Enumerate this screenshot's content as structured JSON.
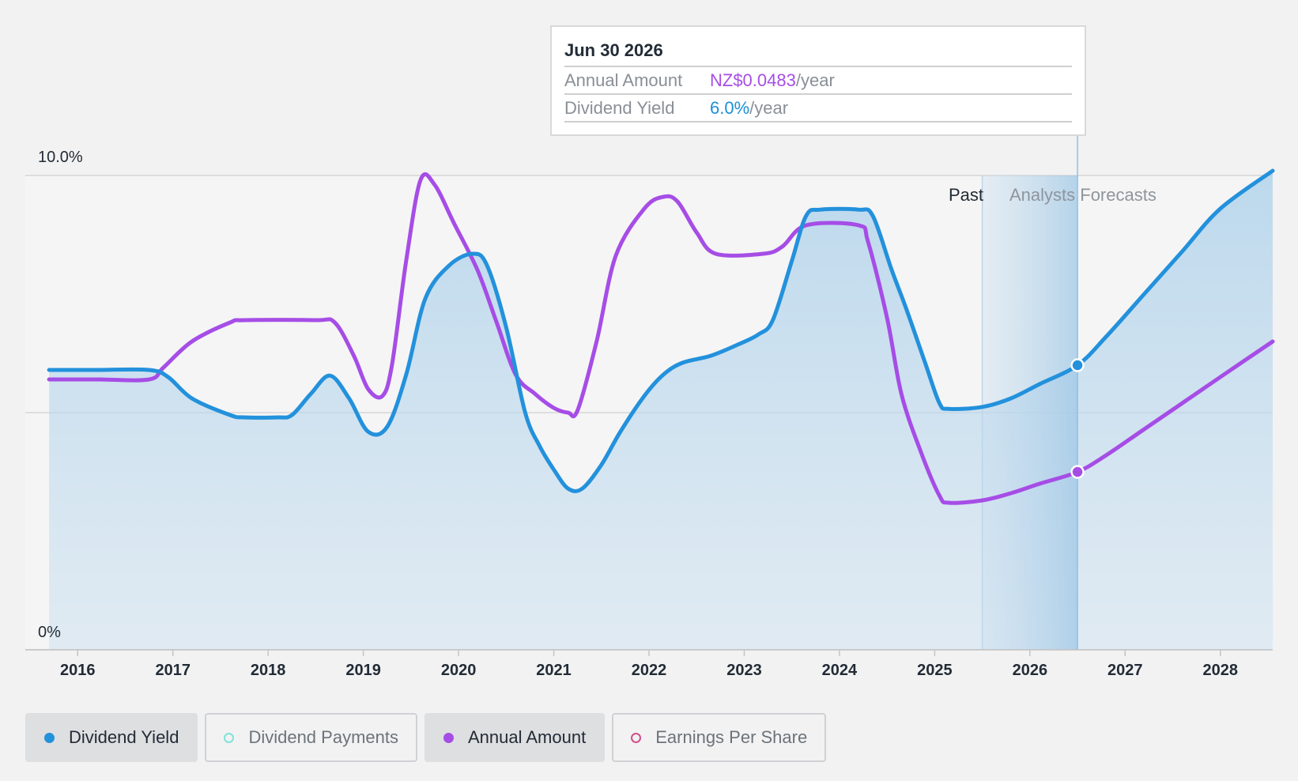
{
  "chart_data": {
    "type": "area",
    "y_axis": {
      "top_label": "10.0%",
      "bottom_label": "0%",
      "ylim": [
        0,
        10
      ],
      "unit": "%"
    },
    "x_ticks": [
      "2016",
      "2017",
      "2018",
      "2019",
      "2020",
      "2021",
      "2022",
      "2023",
      "2024",
      "2025",
      "2026",
      "2027",
      "2028"
    ],
    "xlim": [
      2015.45,
      2028.55
    ],
    "forecast_start": 2025.5,
    "region_labels": {
      "past": "Past",
      "forecast": "Analysts Forecasts"
    },
    "series": [
      {
        "name": "Dividend Yield",
        "color": "#2391dc",
        "filled": true,
        "points": [
          [
            2015.7,
            5.9
          ],
          [
            2016.2,
            5.9
          ],
          [
            2016.75,
            5.9
          ],
          [
            2016.95,
            5.75
          ],
          [
            2017.2,
            5.3
          ],
          [
            2017.6,
            4.95
          ],
          [
            2017.75,
            4.9
          ],
          [
            2018.1,
            4.9
          ],
          [
            2018.25,
            4.95
          ],
          [
            2018.45,
            5.4
          ],
          [
            2018.65,
            5.78
          ],
          [
            2018.85,
            5.3
          ],
          [
            2019.05,
            4.6
          ],
          [
            2019.25,
            4.7
          ],
          [
            2019.45,
            5.8
          ],
          [
            2019.65,
            7.4
          ],
          [
            2019.9,
            8.1
          ],
          [
            2020.15,
            8.35
          ],
          [
            2020.3,
            8.1
          ],
          [
            2020.5,
            6.8
          ],
          [
            2020.7,
            5.0
          ],
          [
            2020.85,
            4.3
          ],
          [
            2021.0,
            3.8
          ],
          [
            2021.15,
            3.4
          ],
          [
            2021.3,
            3.4
          ],
          [
            2021.5,
            3.9
          ],
          [
            2021.7,
            4.6
          ],
          [
            2021.95,
            5.35
          ],
          [
            2022.15,
            5.8
          ],
          [
            2022.35,
            6.05
          ],
          [
            2022.65,
            6.2
          ],
          [
            2022.95,
            6.45
          ],
          [
            2023.15,
            6.65
          ],
          [
            2023.3,
            6.95
          ],
          [
            2023.5,
            8.2
          ],
          [
            2023.65,
            9.15
          ],
          [
            2023.8,
            9.28
          ],
          [
            2024.2,
            9.28
          ],
          [
            2024.35,
            9.15
          ],
          [
            2024.55,
            8.0
          ],
          [
            2024.7,
            7.2
          ],
          [
            2024.9,
            6.05
          ],
          [
            2025.05,
            5.2
          ],
          [
            2025.15,
            5.08
          ],
          [
            2025.5,
            5.12
          ],
          [
            2025.8,
            5.3
          ],
          [
            2026.1,
            5.6
          ],
          [
            2026.5,
            6.0
          ],
          [
            2026.8,
            6.6
          ],
          [
            2027.2,
            7.5
          ],
          [
            2027.6,
            8.4
          ],
          [
            2028.0,
            9.3
          ],
          [
            2028.55,
            10.1
          ]
        ]
      },
      {
        "name": "Annual Amount",
        "color": "#a64de6",
        "filled": false,
        "points": [
          [
            2015.7,
            5.7
          ],
          [
            2016.2,
            5.7
          ],
          [
            2016.75,
            5.7
          ],
          [
            2016.9,
            5.95
          ],
          [
            2017.2,
            6.5
          ],
          [
            2017.6,
            6.9
          ],
          [
            2017.75,
            6.95
          ],
          [
            2018.5,
            6.95
          ],
          [
            2018.7,
            6.9
          ],
          [
            2018.9,
            6.2
          ],
          [
            2019.05,
            5.5
          ],
          [
            2019.2,
            5.35
          ],
          [
            2019.3,
            6.0
          ],
          [
            2019.45,
            8.2
          ],
          [
            2019.6,
            9.9
          ],
          [
            2019.75,
            9.8
          ],
          [
            2019.95,
            9.0
          ],
          [
            2020.2,
            8.0
          ],
          [
            2020.4,
            6.9
          ],
          [
            2020.6,
            5.8
          ],
          [
            2020.8,
            5.4
          ],
          [
            2021.0,
            5.1
          ],
          [
            2021.15,
            5.0
          ],
          [
            2021.25,
            5.05
          ],
          [
            2021.45,
            6.5
          ],
          [
            2021.65,
            8.3
          ],
          [
            2021.95,
            9.3
          ],
          [
            2022.15,
            9.55
          ],
          [
            2022.3,
            9.45
          ],
          [
            2022.5,
            8.8
          ],
          [
            2022.7,
            8.35
          ],
          [
            2023.2,
            8.35
          ],
          [
            2023.4,
            8.5
          ],
          [
            2023.65,
            8.95
          ],
          [
            2024.2,
            8.95
          ],
          [
            2024.3,
            8.6
          ],
          [
            2024.5,
            7.0
          ],
          [
            2024.65,
            5.4
          ],
          [
            2024.85,
            4.2
          ],
          [
            2025.05,
            3.25
          ],
          [
            2025.15,
            3.1
          ],
          [
            2025.5,
            3.15
          ],
          [
            2025.8,
            3.3
          ],
          [
            2026.1,
            3.5
          ],
          [
            2026.5,
            3.75
          ],
          [
            2026.8,
            4.1
          ],
          [
            2027.2,
            4.65
          ],
          [
            2027.6,
            5.2
          ],
          [
            2028.0,
            5.75
          ],
          [
            2028.55,
            6.5
          ]
        ]
      }
    ],
    "highlight": {
      "x": 2026.5,
      "label": "Jun 30 2026",
      "yield_value": 6.0,
      "annual_value": 3.75
    },
    "grid_lines": [
      0,
      5,
      10
    ]
  },
  "tooltip": {
    "date": "Jun 30 2026",
    "rows": [
      {
        "name": "Annual Amount",
        "value": "NZ$0.0483",
        "unit": "/year"
      },
      {
        "name": "Dividend Yield",
        "value": "6.0%",
        "unit": "/year"
      }
    ]
  },
  "legend": [
    {
      "label": "Dividend Yield",
      "color": "#2391dc",
      "active": true,
      "filled_dot": true
    },
    {
      "label": "Dividend Payments",
      "color": "#7fe3d8",
      "active": false,
      "filled_dot": false
    },
    {
      "label": "Annual Amount",
      "color": "#a64de6",
      "active": true,
      "filled_dot": true
    },
    {
      "label": "Earnings Per Share",
      "color": "#d0508a",
      "active": false,
      "filled_dot": false
    }
  ]
}
